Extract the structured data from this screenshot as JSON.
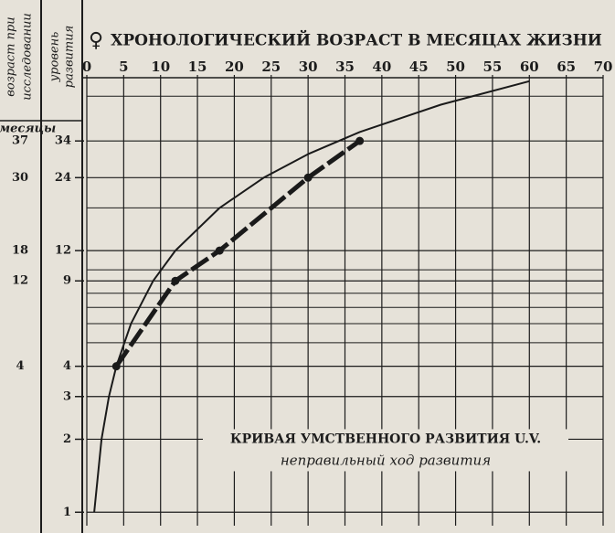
{
  "chart_data": {
    "type": "line",
    "symbol": "♀",
    "title": "ХРОНОЛОГИЧЕСКИЙ ВОЗРАСТ В МЕСЯЦАХ ЖИЗНИ",
    "column_headers": [
      [
        "возраст при",
        "исследовании"
      ],
      [
        "уровень",
        "развития"
      ]
    ],
    "units_label": "месяцы",
    "annotations": [
      "КРИВАЯ УМСТВЕННОГО РАЗВИТИЯ U.V.",
      "неправильный ход развития"
    ],
    "xlim": [
      0,
      70
    ],
    "xticks": [
      0,
      5,
      10,
      15,
      20,
      25,
      30,
      35,
      40,
      45,
      50,
      55,
      60,
      65,
      70
    ],
    "ylim": [
      0.88,
      62
    ],
    "log_y": true,
    "yticks": [
      1,
      2,
      3,
      4,
      9,
      12,
      24,
      34
    ],
    "minor_grid_y": [
      5,
      6,
      7,
      8,
      10,
      18,
      52
    ],
    "grid": true,
    "series": [
      {
        "color": "#1a1a1a",
        "style": "dashed-thick",
        "x": [
          4,
          12,
          18,
          30,
          37
        ],
        "values": [
          4,
          9,
          12,
          24,
          34
        ]
      },
      {
        "color": "#1a1a1a",
        "style": "thin",
        "x": [
          1,
          2,
          3,
          4,
          6,
          9,
          12,
          18,
          24,
          30,
          37,
          48,
          60
        ],
        "values": [
          1,
          2,
          3,
          4,
          6,
          9,
          12,
          18,
          24,
          30,
          37,
          48,
          60
        ]
      }
    ]
  }
}
